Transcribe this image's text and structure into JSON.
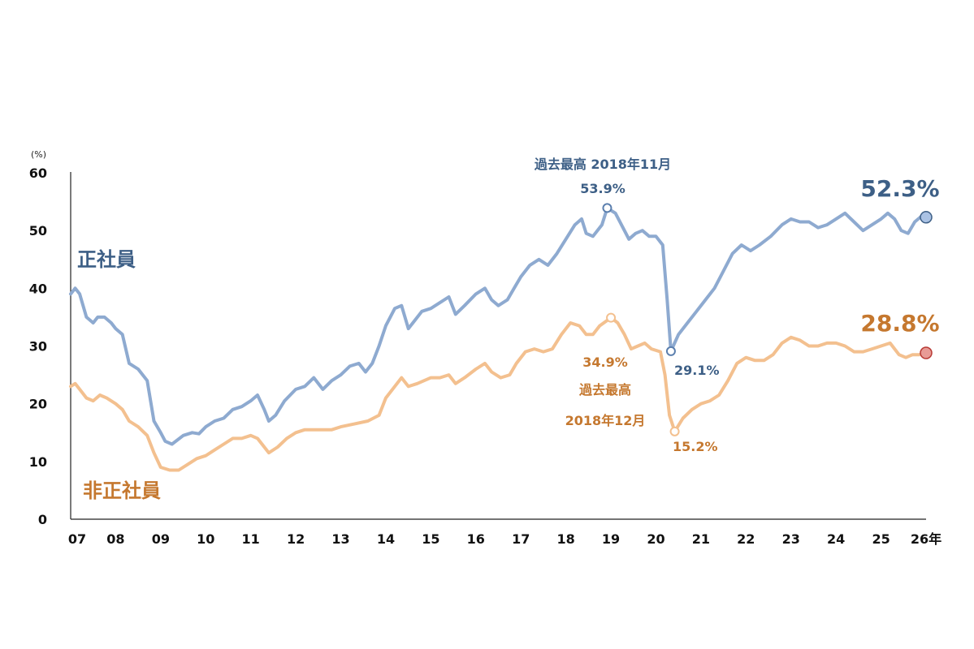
{
  "chart_data": {
    "type": "line",
    "unit_label": "(%)",
    "ylim": [
      0,
      60
    ],
    "yticks": [
      "0",
      "10",
      "20",
      "30",
      "40",
      "50",
      "60"
    ],
    "x_range": [
      2007,
      2026
    ],
    "xticks": [
      {
        "label": "07",
        "year": 2007
      },
      {
        "label": "08",
        "year": 2008
      },
      {
        "label": "09",
        "year": 2009
      },
      {
        "label": "10",
        "year": 2010
      },
      {
        "label": "11",
        "year": 2011
      },
      {
        "label": "12",
        "year": 2012
      },
      {
        "label": "13",
        "year": 2013
      },
      {
        "label": "14",
        "year": 2014
      },
      {
        "label": "15",
        "year": 2015
      },
      {
        "label": "16",
        "year": 2016
      },
      {
        "label": "17",
        "year": 2017
      },
      {
        "label": "18",
        "year": 2018
      },
      {
        "label": "19",
        "year": 2019
      },
      {
        "label": "20",
        "year": 2020
      },
      {
        "label": "21",
        "year": 2021
      },
      {
        "label": "22",
        "year": 2022
      },
      {
        "label": "23",
        "year": 2023
      },
      {
        "label": "24",
        "year": 2024
      },
      {
        "label": "25",
        "year": 2025
      },
      {
        "label": "26年",
        "year": 2026
      }
    ],
    "series": [
      {
        "name": "正社員",
        "color": "#8eaad0",
        "label_color": "#3d5f86",
        "latest_label": "52.3%",
        "points": [
          [
            2007.0,
            39.0
          ],
          [
            2007.1,
            40.0
          ],
          [
            2007.2,
            39.0
          ],
          [
            2007.35,
            35.0
          ],
          [
            2007.5,
            34.0
          ],
          [
            2007.6,
            35.0
          ],
          [
            2007.75,
            35.0
          ],
          [
            2007.9,
            34.0
          ],
          [
            2008.0,
            33.0
          ],
          [
            2008.15,
            32.0
          ],
          [
            2008.3,
            27.0
          ],
          [
            2008.5,
            26.0
          ],
          [
            2008.7,
            24.0
          ],
          [
            2008.85,
            17.0
          ],
          [
            2009.0,
            15.0
          ],
          [
            2009.1,
            13.5
          ],
          [
            2009.25,
            13.0
          ],
          [
            2009.5,
            14.5
          ],
          [
            2009.7,
            15.0
          ],
          [
            2009.85,
            14.8
          ],
          [
            2010.0,
            16.0
          ],
          [
            2010.2,
            17.0
          ],
          [
            2010.4,
            17.5
          ],
          [
            2010.6,
            19.0
          ],
          [
            2010.8,
            19.5
          ],
          [
            2011.0,
            20.5
          ],
          [
            2011.15,
            21.5
          ],
          [
            2011.3,
            19.0
          ],
          [
            2011.4,
            17.0
          ],
          [
            2011.55,
            18.0
          ],
          [
            2011.75,
            20.5
          ],
          [
            2012.0,
            22.5
          ],
          [
            2012.2,
            23.0
          ],
          [
            2012.4,
            24.5
          ],
          [
            2012.6,
            22.5
          ],
          [
            2012.8,
            24.0
          ],
          [
            2013.0,
            25.0
          ],
          [
            2013.2,
            26.5
          ],
          [
            2013.4,
            27.0
          ],
          [
            2013.55,
            25.5
          ],
          [
            2013.7,
            27.0
          ],
          [
            2013.85,
            30.0
          ],
          [
            2014.0,
            33.5
          ],
          [
            2014.2,
            36.5
          ],
          [
            2014.35,
            37.0
          ],
          [
            2014.5,
            33.0
          ],
          [
            2014.65,
            34.5
          ],
          [
            2014.8,
            36.0
          ],
          [
            2015.0,
            36.5
          ],
          [
            2015.2,
            37.5
          ],
          [
            2015.4,
            38.5
          ],
          [
            2015.55,
            35.5
          ],
          [
            2015.75,
            37.0
          ],
          [
            2016.0,
            39.0
          ],
          [
            2016.2,
            40.0
          ],
          [
            2016.35,
            38.0
          ],
          [
            2016.5,
            37.0
          ],
          [
            2016.7,
            38.0
          ],
          [
            2016.85,
            40.0
          ],
          [
            2017.0,
            42.0
          ],
          [
            2017.2,
            44.0
          ],
          [
            2017.4,
            45.0
          ],
          [
            2017.6,
            44.0
          ],
          [
            2017.8,
            46.0
          ],
          [
            2018.0,
            48.5
          ],
          [
            2018.2,
            51.0
          ],
          [
            2018.35,
            52.0
          ],
          [
            2018.45,
            49.5
          ],
          [
            2018.6,
            49.0
          ],
          [
            2018.8,
            51.0
          ],
          [
            2018.917,
            53.9
          ],
          [
            2019.1,
            53.0
          ],
          [
            2019.3,
            50.0
          ],
          [
            2019.4,
            48.5
          ],
          [
            2019.55,
            49.5
          ],
          [
            2019.7,
            50.0
          ],
          [
            2019.85,
            49.0
          ],
          [
            2020.0,
            49.0
          ],
          [
            2020.15,
            47.5
          ],
          [
            2020.25,
            38.0
          ],
          [
            2020.333,
            29.1
          ],
          [
            2020.5,
            32.0
          ],
          [
            2020.7,
            34.0
          ],
          [
            2020.9,
            36.0
          ],
          [
            2021.1,
            38.0
          ],
          [
            2021.3,
            40.0
          ],
          [
            2021.5,
            43.0
          ],
          [
            2021.7,
            46.0
          ],
          [
            2021.9,
            47.5
          ],
          [
            2022.1,
            46.5
          ],
          [
            2022.3,
            47.5
          ],
          [
            2022.55,
            49.0
          ],
          [
            2022.8,
            51.0
          ],
          [
            2023.0,
            52.0
          ],
          [
            2023.2,
            51.5
          ],
          [
            2023.4,
            51.5
          ],
          [
            2023.6,
            50.5
          ],
          [
            2023.8,
            51.0
          ],
          [
            2024.0,
            52.0
          ],
          [
            2024.2,
            53.0
          ],
          [
            2024.4,
            51.5
          ],
          [
            2024.6,
            50.0
          ],
          [
            2024.8,
            51.0
          ],
          [
            2025.0,
            52.0
          ],
          [
            2025.15,
            53.0
          ],
          [
            2025.3,
            52.0
          ],
          [
            2025.45,
            50.0
          ],
          [
            2025.6,
            49.5
          ],
          [
            2025.75,
            51.5
          ],
          [
            2025.9,
            52.5
          ],
          [
            2026.0,
            52.3
          ]
        ]
      },
      {
        "name": "非正社員",
        "color": "#f3c08f",
        "label_color": "#c5782f",
        "latest_label": "28.8%",
        "points": [
          [
            2007.0,
            23.0
          ],
          [
            2007.1,
            23.5
          ],
          [
            2007.2,
            22.5
          ],
          [
            2007.35,
            21.0
          ],
          [
            2007.5,
            20.5
          ],
          [
            2007.65,
            21.5
          ],
          [
            2007.8,
            21.0
          ],
          [
            2008.0,
            20.0
          ],
          [
            2008.15,
            19.0
          ],
          [
            2008.3,
            17.0
          ],
          [
            2008.5,
            16.0
          ],
          [
            2008.7,
            14.5
          ],
          [
            2008.85,
            11.5
          ],
          [
            2009.0,
            9.0
          ],
          [
            2009.2,
            8.5
          ],
          [
            2009.4,
            8.5
          ],
          [
            2009.6,
            9.5
          ],
          [
            2009.8,
            10.5
          ],
          [
            2010.0,
            11.0
          ],
          [
            2010.2,
            12.0
          ],
          [
            2010.4,
            13.0
          ],
          [
            2010.6,
            14.0
          ],
          [
            2010.8,
            14.0
          ],
          [
            2011.0,
            14.5
          ],
          [
            2011.15,
            14.0
          ],
          [
            2011.3,
            12.5
          ],
          [
            2011.4,
            11.5
          ],
          [
            2011.6,
            12.5
          ],
          [
            2011.8,
            14.0
          ],
          [
            2012.0,
            15.0
          ],
          [
            2012.2,
            15.5
          ],
          [
            2012.5,
            15.5
          ],
          [
            2012.8,
            15.5
          ],
          [
            2013.0,
            16.0
          ],
          [
            2013.3,
            16.5
          ],
          [
            2013.6,
            17.0
          ],
          [
            2013.85,
            18.0
          ],
          [
            2014.0,
            21.0
          ],
          [
            2014.2,
            23.0
          ],
          [
            2014.35,
            24.5
          ],
          [
            2014.5,
            23.0
          ],
          [
            2014.7,
            23.5
          ],
          [
            2015.0,
            24.5
          ],
          [
            2015.2,
            24.5
          ],
          [
            2015.4,
            25.0
          ],
          [
            2015.55,
            23.5
          ],
          [
            2015.75,
            24.5
          ],
          [
            2016.0,
            26.0
          ],
          [
            2016.2,
            27.0
          ],
          [
            2016.35,
            25.5
          ],
          [
            2016.55,
            24.5
          ],
          [
            2016.75,
            25.0
          ],
          [
            2016.9,
            27.0
          ],
          [
            2017.1,
            29.0
          ],
          [
            2017.3,
            29.5
          ],
          [
            2017.5,
            29.0
          ],
          [
            2017.7,
            29.5
          ],
          [
            2017.9,
            32.0
          ],
          [
            2018.1,
            34.0
          ],
          [
            2018.3,
            33.5
          ],
          [
            2018.45,
            32.0
          ],
          [
            2018.6,
            32.0
          ],
          [
            2018.75,
            33.5
          ],
          [
            2019.0,
            34.9
          ],
          [
            2019.15,
            34.0
          ],
          [
            2019.3,
            32.0
          ],
          [
            2019.45,
            29.5
          ],
          [
            2019.6,
            30.0
          ],
          [
            2019.75,
            30.5
          ],
          [
            2019.9,
            29.5
          ],
          [
            2020.1,
            29.0
          ],
          [
            2020.2,
            25.0
          ],
          [
            2020.3,
            18.0
          ],
          [
            2020.417,
            15.2
          ],
          [
            2020.6,
            17.5
          ],
          [
            2020.8,
            19.0
          ],
          [
            2021.0,
            20.0
          ],
          [
            2021.2,
            20.5
          ],
          [
            2021.4,
            21.5
          ],
          [
            2021.6,
            24.0
          ],
          [
            2021.8,
            27.0
          ],
          [
            2022.0,
            28.0
          ],
          [
            2022.2,
            27.5
          ],
          [
            2022.4,
            27.5
          ],
          [
            2022.6,
            28.5
          ],
          [
            2022.8,
            30.5
          ],
          [
            2023.0,
            31.5
          ],
          [
            2023.2,
            31.0
          ],
          [
            2023.4,
            30.0
          ],
          [
            2023.6,
            30.0
          ],
          [
            2023.8,
            30.5
          ],
          [
            2024.0,
            30.5
          ],
          [
            2024.2,
            30.0
          ],
          [
            2024.4,
            29.0
          ],
          [
            2024.6,
            29.0
          ],
          [
            2024.8,
            29.5
          ],
          [
            2025.0,
            30.0
          ],
          [
            2025.2,
            30.5
          ],
          [
            2025.4,
            28.5
          ],
          [
            2025.55,
            28.0
          ],
          [
            2025.7,
            28.5
          ],
          [
            2025.85,
            28.5
          ],
          [
            2026.0,
            28.8
          ]
        ]
      }
    ],
    "annotations": {
      "blue_peak": {
        "title": "過去最高 2018年11月",
        "value": "53.9%",
        "year": 2018.917,
        "y": 53.9
      },
      "blue_trough": {
        "value": "29.1%",
        "year": 2020.333,
        "y": 29.1
      },
      "orange_peak": {
        "value": "34.9%",
        "line1": "過去最高",
        "line2": "2018年12月",
        "year": 2019.0,
        "y": 34.9
      },
      "orange_trough": {
        "value": "15.2%",
        "year": 2020.417,
        "y": 15.2
      }
    },
    "latest_markers": {
      "blue": {
        "fill": "#aac2e4",
        "stroke": "#3d5f86"
      },
      "orange": {
        "fill": "#e89b96",
        "stroke": "#b83a35"
      }
    }
  }
}
